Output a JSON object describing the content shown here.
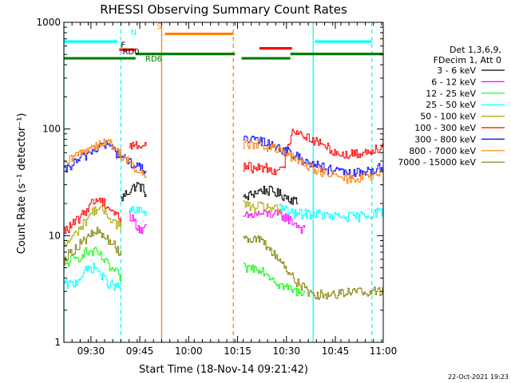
{
  "chart_data": {
    "type": "line",
    "title": "RHESSI Observing Summary Count Rates",
    "xlabel": "Start Time (18-Nov-14 09:21:42)",
    "ylabel": "Count Rate (s⁻¹ detector⁻¹)",
    "yscale": "log",
    "ylim": [
      1,
      1000
    ],
    "xlim_minutes": [
      0,
      98
    ],
    "x_ticks": [
      {
        "label": "09:30",
        "t": 8.3
      },
      {
        "label": "09:45",
        "t": 23.3
      },
      {
        "label": "10:00",
        "t": 38.3
      },
      {
        "label": "10:15",
        "t": 53.3
      },
      {
        "label": "10:30",
        "t": 68.3
      },
      {
        "label": "10:45",
        "t": 83.3
      },
      {
        "label": "11:00",
        "t": 98.3
      }
    ],
    "y_ticks": [
      {
        "label": "1",
        "v": 1
      },
      {
        "label": "10",
        "v": 10
      },
      {
        "label": "100",
        "v": 100
      },
      {
        "label": "1000",
        "v": 1000
      }
    ],
    "legend_header": [
      "Det 1,3,6,9,",
      "FDecim 1, Att 0"
    ],
    "legend_position": "right",
    "series": [
      {
        "name": "3 - 6 keV",
        "color": "#000000",
        "segments": [
          [
            [
              17.5,
              22
            ],
            [
              19,
              25
            ],
            [
              21,
              28
            ],
            [
              22.5,
              30
            ],
            [
              24,
              28
            ],
            [
              25.5,
              24
            ]
          ],
          [
            [
              55,
              22
            ],
            [
              58,
              25
            ],
            [
              61,
              27
            ],
            [
              64,
              26
            ],
            [
              67,
              24
            ],
            [
              70,
              22
            ],
            [
              72,
              20
            ]
          ]
        ]
      },
      {
        "name": "6 - 12 keV",
        "color": "#ff00ff",
        "segments": [
          [
            [
              20,
              16
            ],
            [
              22,
              13
            ],
            [
              24,
              11
            ],
            [
              25.5,
              12
            ]
          ],
          [
            [
              55,
              15
            ],
            [
              60,
              16
            ],
            [
              64,
              16
            ],
            [
              68,
              15
            ],
            [
              71,
              13
            ],
            [
              74,
              11
            ]
          ]
        ]
      },
      {
        "name": "12 - 25 keV",
        "color": "#00ff00",
        "segments": [
          [
            [
              0,
              5
            ],
            [
              2,
              6
            ],
            [
              4,
              6
            ],
            [
              6,
              7
            ],
            [
              8,
              7
            ],
            [
              10,
              7
            ],
            [
              12,
              6
            ],
            [
              14,
              5
            ],
            [
              16,
              4.5
            ],
            [
              17.5,
              4
            ]
          ],
          [
            [
              55,
              5
            ],
            [
              57,
              5
            ],
            [
              60,
              5
            ],
            [
              62,
              4.5
            ],
            [
              64,
              4
            ],
            [
              66,
              3.5
            ],
            [
              68,
              3.3
            ],
            [
              71,
              3
            ],
            [
              74,
              3
            ]
          ]
        ]
      },
      {
        "name": "25 - 50 keV",
        "color": "#00ffff",
        "segments": [
          [
            [
              0,
              3.5
            ],
            [
              3,
              3.5
            ],
            [
              6,
              4.5
            ],
            [
              8,
              5
            ],
            [
              10,
              5
            ],
            [
              12,
              4
            ],
            [
              14,
              3.5
            ],
            [
              17.5,
              3.2
            ]
          ],
          [
            [
              20,
              17
            ],
            [
              22,
              17
            ],
            [
              25.5,
              17
            ]
          ],
          [
            [
              66,
              19
            ],
            [
              70,
              16
            ],
            [
              74,
              16
            ],
            [
              78,
              16
            ],
            [
              82,
              15
            ],
            [
              86,
              15
            ],
            [
              90,
              15
            ],
            [
              94,
              16
            ],
            [
              98,
              17
            ]
          ]
        ]
      },
      {
        "name": "50 - 100 keV",
        "color": "#aaaa00",
        "segments": [
          [
            [
              0,
              8
            ],
            [
              3,
              10
            ],
            [
              6,
              13
            ],
            [
              8,
              16
            ],
            [
              10,
              18
            ],
            [
              12,
              17
            ],
            [
              14,
              15
            ],
            [
              16,
              13
            ],
            [
              17.5,
              12
            ]
          ],
          [
            [
              55,
              20
            ],
            [
              58,
              18
            ],
            [
              61,
              19
            ],
            [
              64,
              18
            ],
            [
              67,
              17
            ]
          ]
        ]
      },
      {
        "name": "100 - 300 keV",
        "color": "#ff0000",
        "segments": [
          [
            [
              0,
              11
            ],
            [
              3,
              13
            ],
            [
              6,
              16
            ],
            [
              8,
              20
            ],
            [
              10,
              22
            ],
            [
              12,
              21
            ],
            [
              14,
              18
            ],
            [
              16,
              16
            ],
            [
              17.5,
              14
            ]
          ],
          [
            [
              20,
              72
            ],
            [
              22,
              70
            ],
            [
              25.5,
              70
            ]
          ],
          [
            [
              55,
              45
            ],
            [
              58,
              43
            ],
            [
              61,
              44
            ],
            [
              64,
              42
            ],
            [
              67,
              40
            ],
            [
              70,
              100
            ],
            [
              73,
              90
            ],
            [
              76,
              80
            ],
            [
              79,
              72
            ],
            [
              82,
              65
            ],
            [
              84,
              58
            ],
            [
              88,
              58
            ],
            [
              92,
              60
            ],
            [
              95,
              65
            ],
            [
              98,
              70
            ]
          ]
        ]
      },
      {
        "name": "300 - 800 keV",
        "color": "#0000ff",
        "segments": [
          [
            [
              0,
              40
            ],
            [
              3,
              48
            ],
            [
              6,
              55
            ],
            [
              9,
              64
            ],
            [
              12,
              72
            ],
            [
              14,
              70
            ],
            [
              16,
              60
            ],
            [
              18,
              54
            ],
            [
              20,
              50
            ],
            [
              22,
              44
            ],
            [
              25.5,
              42
            ]
          ],
          [
            [
              55,
              78
            ],
            [
              58,
              78
            ],
            [
              61,
              76
            ],
            [
              64,
              72
            ],
            [
              67,
              64
            ],
            [
              70,
              58
            ],
            [
              73,
              52
            ],
            [
              76,
              48
            ],
            [
              79,
              44
            ],
            [
              82,
              41
            ],
            [
              85,
              39
            ],
            [
              88,
              38
            ],
            [
              91,
              39
            ],
            [
              94,
              41
            ],
            [
              98,
              44
            ]
          ]
        ]
      },
      {
        "name": "800 - 7000 keV",
        "color": "#ff8000",
        "segments": [
          [
            [
              0,
              45
            ],
            [
              3,
              55
            ],
            [
              6,
              62
            ],
            [
              9,
              70
            ],
            [
              12,
              75
            ],
            [
              14,
              74
            ],
            [
              16,
              64
            ],
            [
              18,
              56
            ],
            [
              20,
              50
            ],
            [
              22,
              40
            ],
            [
              25.5,
              37
            ]
          ],
          [
            [
              55,
              72
            ],
            [
              58,
              72
            ],
            [
              61,
              70
            ],
            [
              64,
              66
            ],
            [
              67,
              60
            ],
            [
              70,
              54
            ],
            [
              73,
              48
            ],
            [
              76,
              44
            ],
            [
              79,
              40
            ],
            [
              82,
              37
            ],
            [
              85,
              35
            ],
            [
              88,
              34
            ],
            [
              91,
              35
            ],
            [
              94,
              36
            ],
            [
              98,
              38
            ]
          ]
        ]
      },
      {
        "name": "7000 - 15000 keV",
        "color": "#808000",
        "segments": [
          [
            [
              0,
              6
            ],
            [
              2,
              7
            ],
            [
              4,
              8
            ],
            [
              6,
              9
            ],
            [
              8,
              10
            ],
            [
              10,
              11
            ],
            [
              12,
              10
            ],
            [
              14,
              9
            ],
            [
              15.5,
              8
            ],
            [
              17.5,
              7
            ]
          ],
          [
            [
              55,
              10
            ],
            [
              57,
              9.5
            ],
            [
              60,
              9
            ],
            [
              62,
              8
            ],
            [
              64,
              7
            ],
            [
              66,
              6
            ],
            [
              68,
              5
            ],
            [
              70,
              4.2
            ],
            [
              72,
              3.5
            ],
            [
              75,
              3
            ],
            [
              78,
              2.8
            ],
            [
              82,
              2.8
            ],
            [
              86,
              3
            ],
            [
              90,
              3
            ],
            [
              94,
              3
            ],
            [
              98,
              3
            ]
          ]
        ]
      }
    ],
    "annotations": [
      {
        "text": "N",
        "color": "#00ffff",
        "t": 20.5,
        "v": 760
      },
      {
        "text": "S",
        "color": "#ff8000",
        "t": 28.5,
        "v": 870
      },
      {
        "text": "F",
        "color": "#000000",
        "t": 17.5,
        "v": 580
      },
      {
        "text": "RD0",
        "color": "#000000",
        "t": 18,
        "v": 500
      },
      {
        "text": "RD6",
        "color": "#008000",
        "t": 25,
        "v": 430
      }
    ],
    "flag_bars": [
      {
        "color": "#00ffff",
        "t0": 0,
        "t1": 16.5,
        "v": 660
      },
      {
        "color": "#00ffff",
        "t0": 77,
        "t1": 94.5,
        "v": 660
      },
      {
        "color": "#ff8000",
        "t0": 31,
        "t1": 52,
        "v": 780
      },
      {
        "color": "#ff0000",
        "t0": 17,
        "t1": 22,
        "v": 555
      },
      {
        "color": "#ff0000",
        "t0": 60,
        "t1": 70,
        "v": 570
      },
      {
        "color": "#008000",
        "t0": 0,
        "t1": 22,
        "v": 460
      },
      {
        "color": "#008000",
        "t0": 22,
        "t1": 52.5,
        "v": 505
      },
      {
        "color": "#008000",
        "t0": 54.5,
        "t1": 69.5,
        "v": 460
      },
      {
        "color": "#008000",
        "t0": 69.5,
        "t1": 98,
        "v": 505
      }
    ],
    "vertical_lines": [
      {
        "color": "#00ffff",
        "t": 0,
        "dashed": false
      },
      {
        "color": "#00ffff",
        "t": 17.5,
        "dashed": true
      },
      {
        "color": "#ff8000",
        "t": 30,
        "dashed": false
      },
      {
        "color": "#ff8000",
        "t": 52,
        "dashed": true
      },
      {
        "color": "#00ffff",
        "t": 76.5,
        "dashed": false
      },
      {
        "color": "#00ffff",
        "t": 94.5,
        "dashed": true
      }
    ]
  },
  "footer_date": "22-Oct-2021 19:23"
}
